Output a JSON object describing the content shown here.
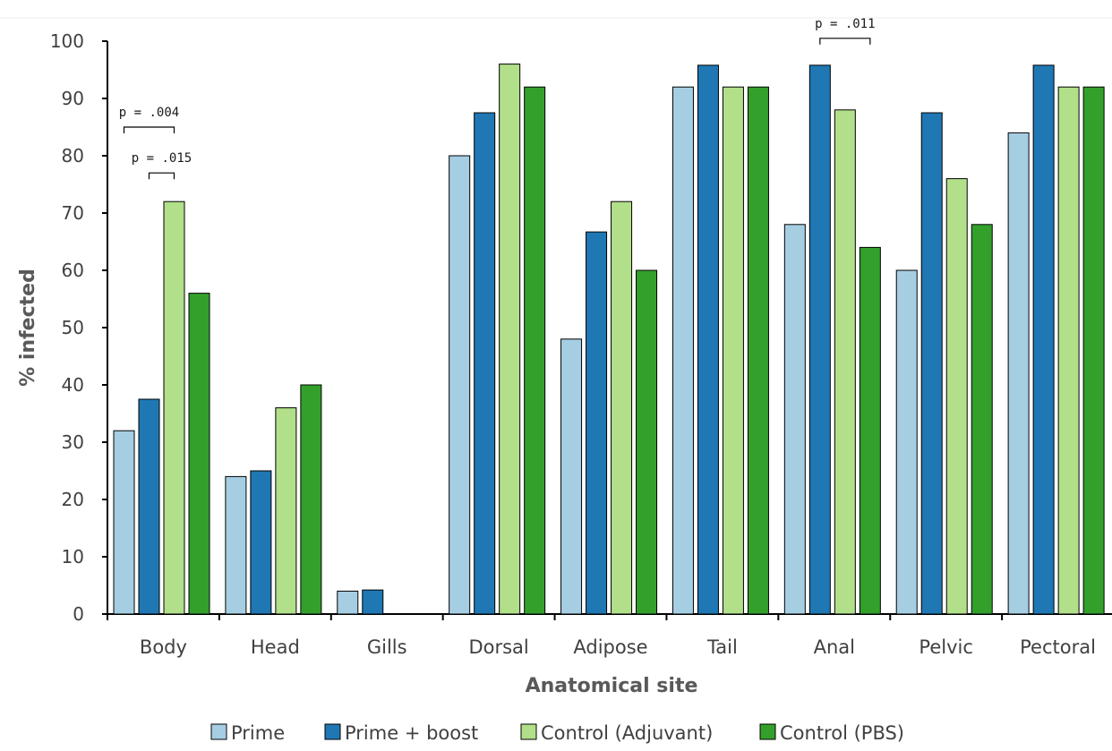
{
  "chart_data": {
    "type": "bar",
    "xlabel": "Anatomical site",
    "ylabel": "% infected",
    "ylim": [
      0,
      100
    ],
    "yticks": [
      "0",
      "10",
      "20",
      "30",
      "40",
      "50",
      "60",
      "70",
      "80",
      "90",
      "100"
    ],
    "categories": [
      "Body",
      "Head",
      "Gills",
      "Dorsal",
      "Adipose",
      "Tail",
      "Anal",
      "Pelvic",
      "Pectoral"
    ],
    "series": [
      {
        "name": "Prime",
        "color": "#a6cee3",
        "values": [
          32,
          24,
          4,
          80,
          48,
          92,
          68,
          60,
          84
        ]
      },
      {
        "name": "Prime + boost",
        "color": "#1f78b4",
        "values": [
          37.5,
          25,
          4.2,
          87.5,
          66.7,
          95.8,
          95.8,
          87.5,
          95.8
        ]
      },
      {
        "name": "Control (Adjuvant)",
        "color": "#b2df8a",
        "values": [
          72,
          36,
          0,
          96,
          72,
          92,
          88,
          76,
          92
        ]
      },
      {
        "name": "Control (PBS)",
        "color": "#33a02c",
        "values": [
          56,
          40,
          0,
          92,
          60,
          92,
          64,
          68,
          92
        ]
      }
    ],
    "annotations": [
      {
        "text": "p = .004",
        "category": "Body",
        "from_series": 0,
        "to_series": 2,
        "level": 85
      },
      {
        "text": "p = .015",
        "category": "Body",
        "from_series": 1,
        "to_series": 2,
        "level": 77
      },
      {
        "text": "p = .011",
        "category": "Anal",
        "from_series": 1,
        "to_series": 3,
        "level": 100.5
      }
    ],
    "legend_position": "bottom",
    "grid": false
  }
}
